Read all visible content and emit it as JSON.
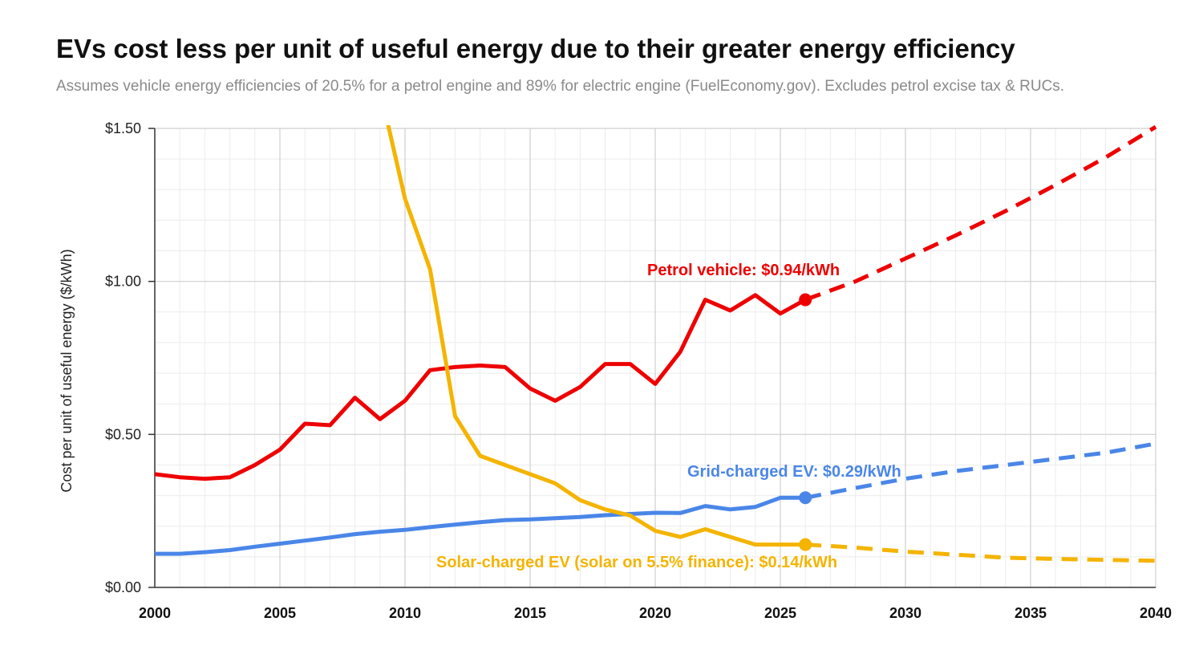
{
  "header": {
    "title": "EVs cost less per unit of useful energy due to their greater energy efficiency",
    "subtitle": "Assumes vehicle energy efficiencies of 20.5% for a petrol engine and 89% for electric engine (FuelEconomy.gov). Excludes petrol excise tax & RUCs."
  },
  "chart_data": {
    "type": "line",
    "title": "EVs cost less per unit of useful energy due to their greater energy efficiency",
    "subtitle": "Assumes vehicle energy efficiencies of 20.5% for a petrol engine and 89% for electric engine (FuelEconomy.gov). Excludes petrol excise tax & RUCs.",
    "xlabel": "",
    "ylabel": "Cost per unit of useful energy ($/kWh)",
    "xlim": [
      2000,
      2040
    ],
    "ylim": [
      0,
      1.5
    ],
    "x_ticks": [
      "2000",
      "2005",
      "2010",
      "2015",
      "2020",
      "2025",
      "2030",
      "2035",
      "2040"
    ],
    "y_ticks": [
      "$0.00",
      "$0.50",
      "$1.00",
      "$1.50"
    ],
    "grid": true,
    "series": [
      {
        "key": "petrol",
        "color": "#ee0000",
        "annotation": "Petrol vehicle: $0.94/kWh",
        "historical": [
          [
            2000,
            0.37
          ],
          [
            2001,
            0.36
          ],
          [
            2002,
            0.355
          ],
          [
            2003,
            0.36
          ],
          [
            2004,
            0.4
          ],
          [
            2005,
            0.45
          ],
          [
            2006,
            0.535
          ],
          [
            2007,
            0.53
          ],
          [
            2008,
            0.62
          ],
          [
            2009,
            0.55
          ],
          [
            2010,
            0.61
          ],
          [
            2011,
            0.71
          ],
          [
            2012,
            0.72
          ],
          [
            2013,
            0.725
          ],
          [
            2014,
            0.72
          ],
          [
            2015,
            0.65
          ],
          [
            2016,
            0.61
          ],
          [
            2017,
            0.655
          ],
          [
            2018,
            0.73
          ],
          [
            2019,
            0.73
          ],
          [
            2020,
            0.665
          ],
          [
            2021,
            0.77
          ],
          [
            2022,
            0.94
          ],
          [
            2023,
            0.905
          ],
          [
            2024,
            0.955
          ],
          [
            2025,
            0.895
          ],
          [
            2026,
            0.94
          ]
        ],
        "projection": [
          [
            2026,
            0.94
          ],
          [
            2028,
            1.0
          ],
          [
            2030,
            1.075
          ],
          [
            2032,
            1.15
          ],
          [
            2034,
            1.23
          ],
          [
            2036,
            1.315
          ],
          [
            2038,
            1.405
          ],
          [
            2040,
            1.505
          ]
        ]
      },
      {
        "key": "grid",
        "color": "#4a86e8",
        "annotation": "Grid-charged EV: $0.29/kWh",
        "historical": [
          [
            2000,
            0.11
          ],
          [
            2001,
            0.11
          ],
          [
            2002,
            0.115
          ],
          [
            2003,
            0.122
          ],
          [
            2004,
            0.133
          ],
          [
            2005,
            0.143
          ],
          [
            2006,
            0.153
          ],
          [
            2007,
            0.163
          ],
          [
            2008,
            0.174
          ],
          [
            2009,
            0.182
          ],
          [
            2010,
            0.188
          ],
          [
            2011,
            0.197
          ],
          [
            2012,
            0.205
          ],
          [
            2013,
            0.213
          ],
          [
            2014,
            0.22
          ],
          [
            2015,
            0.222
          ],
          [
            2016,
            0.226
          ],
          [
            2017,
            0.23
          ],
          [
            2018,
            0.236
          ],
          [
            2019,
            0.24
          ],
          [
            2020,
            0.244
          ],
          [
            2021,
            0.243
          ],
          [
            2022,
            0.266
          ],
          [
            2023,
            0.255
          ],
          [
            2024,
            0.263
          ],
          [
            2025,
            0.293
          ],
          [
            2026,
            0.293
          ]
        ],
        "projection": [
          [
            2026,
            0.293
          ],
          [
            2028,
            0.325
          ],
          [
            2030,
            0.355
          ],
          [
            2032,
            0.38
          ],
          [
            2034,
            0.4
          ],
          [
            2036,
            0.42
          ],
          [
            2038,
            0.44
          ],
          [
            2040,
            0.47
          ]
        ]
      },
      {
        "key": "solar",
        "color": "#f4b400",
        "annotation": "Solar-charged EV (solar on 5.5% finance): $0.14/kWh",
        "historical": [
          [
            2009.3,
            1.52
          ],
          [
            2010,
            1.27
          ],
          [
            2011,
            1.04
          ],
          [
            2012,
            0.56
          ],
          [
            2013,
            0.43
          ],
          [
            2014,
            0.4
          ],
          [
            2015,
            0.37
          ],
          [
            2016,
            0.34
          ],
          [
            2017,
            0.285
          ],
          [
            2018,
            0.255
          ],
          [
            2019,
            0.235
          ],
          [
            2020,
            0.185
          ],
          [
            2021,
            0.165
          ],
          [
            2022,
            0.19
          ],
          [
            2023,
            0.165
          ],
          [
            2024,
            0.14
          ],
          [
            2025,
            0.14
          ],
          [
            2026,
            0.14
          ]
        ],
        "projection": [
          [
            2026,
            0.14
          ],
          [
            2028,
            0.13
          ],
          [
            2030,
            0.117
          ],
          [
            2032,
            0.107
          ],
          [
            2034,
            0.097
          ],
          [
            2036,
            0.093
          ],
          [
            2038,
            0.09
          ],
          [
            2040,
            0.087
          ]
        ]
      }
    ]
  }
}
